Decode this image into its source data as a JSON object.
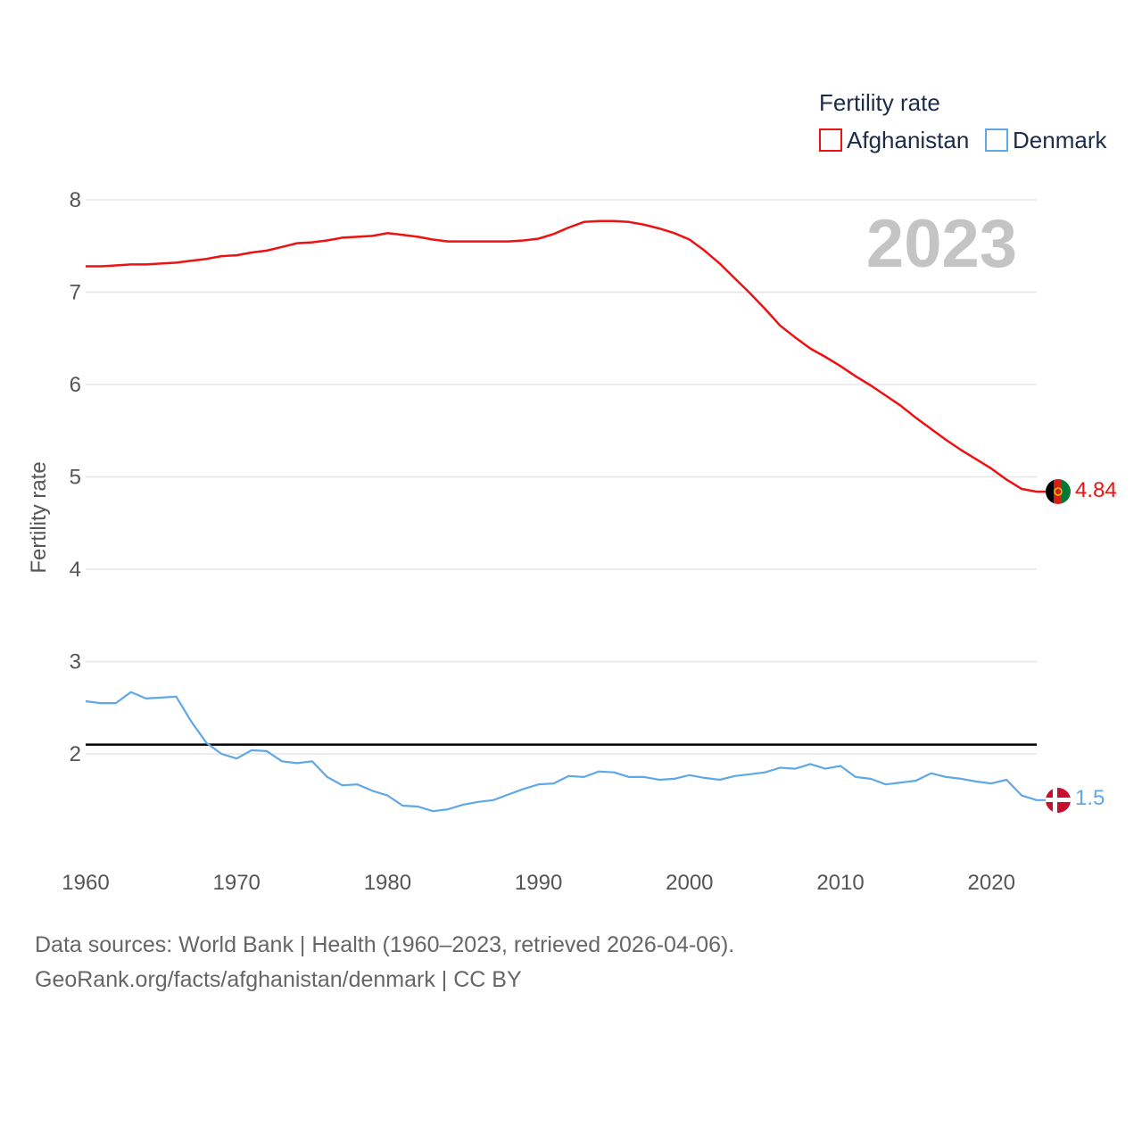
{
  "chart_data": {
    "type": "line",
    "title": "Fertility rate",
    "ylabel": "Fertility rate",
    "xlabel": "",
    "current_year": "2023",
    "xlim": [
      1960,
      2023
    ],
    "ylim": [
      1,
      8.2
    ],
    "x_ticks": [
      1960,
      1970,
      1980,
      1990,
      2000,
      2010,
      2020
    ],
    "y_ticks": [
      2,
      3,
      4,
      5,
      6,
      7,
      8
    ],
    "grid": true,
    "reference_line": 2.1,
    "legend_position": "top-right",
    "x": [
      1960,
      1961,
      1962,
      1963,
      1964,
      1965,
      1966,
      1967,
      1968,
      1969,
      1970,
      1971,
      1972,
      1973,
      1974,
      1975,
      1976,
      1977,
      1978,
      1979,
      1980,
      1981,
      1982,
      1983,
      1984,
      1985,
      1986,
      1987,
      1988,
      1989,
      1990,
      1991,
      1992,
      1993,
      1994,
      1995,
      1996,
      1997,
      1998,
      1999,
      2000,
      2001,
      2002,
      2003,
      2004,
      2005,
      2006,
      2007,
      2008,
      2009,
      2010,
      2011,
      2012,
      2013,
      2014,
      2015,
      2016,
      2017,
      2018,
      2019,
      2020,
      2021,
      2022,
      2023
    ],
    "series": [
      {
        "name": "Afghanistan",
        "color": "#ee1111",
        "end_label": "4.84",
        "flag": "afghanistan-flag",
        "values": [
          7.28,
          7.28,
          7.29,
          7.3,
          7.3,
          7.31,
          7.32,
          7.34,
          7.36,
          7.39,
          7.4,
          7.43,
          7.45,
          7.49,
          7.53,
          7.54,
          7.56,
          7.59,
          7.6,
          7.61,
          7.64,
          7.62,
          7.6,
          7.57,
          7.55,
          7.55,
          7.55,
          7.55,
          7.55,
          7.56,
          7.58,
          7.63,
          7.7,
          7.76,
          7.77,
          7.77,
          7.76,
          7.73,
          7.69,
          7.64,
          7.57,
          7.45,
          7.31,
          7.15,
          6.99,
          6.82,
          6.64,
          6.51,
          6.39,
          6.3,
          6.2,
          6.09,
          5.99,
          5.88,
          5.77,
          5.64,
          5.52,
          5.4,
          5.29,
          5.19,
          5.09,
          4.97,
          4.87,
          4.84
        ]
      },
      {
        "name": "Denmark",
        "color": "#5ea8e8",
        "end_label": "1.5",
        "flag": "denmark-flag",
        "values": [
          2.57,
          2.55,
          2.55,
          2.67,
          2.6,
          2.61,
          2.62,
          2.35,
          2.12,
          2.0,
          1.95,
          2.04,
          2.03,
          1.92,
          1.9,
          1.92,
          1.75,
          1.66,
          1.67,
          1.6,
          1.55,
          1.44,
          1.43,
          1.38,
          1.4,
          1.45,
          1.48,
          1.5,
          1.56,
          1.62,
          1.67,
          1.68,
          1.76,
          1.75,
          1.81,
          1.8,
          1.75,
          1.75,
          1.72,
          1.73,
          1.77,
          1.74,
          1.72,
          1.76,
          1.78,
          1.8,
          1.85,
          1.84,
          1.89,
          1.84,
          1.87,
          1.75,
          1.73,
          1.67,
          1.69,
          1.71,
          1.79,
          1.75,
          1.73,
          1.7,
          1.68,
          1.72,
          1.55,
          1.5
        ]
      }
    ]
  },
  "footer": {
    "line1": "Data sources: World Bank | Health (1960–2023, retrieved 2026-04-06).",
    "line2": "GeoRank.org/facts/afghanistan/denmark | CC BY"
  }
}
